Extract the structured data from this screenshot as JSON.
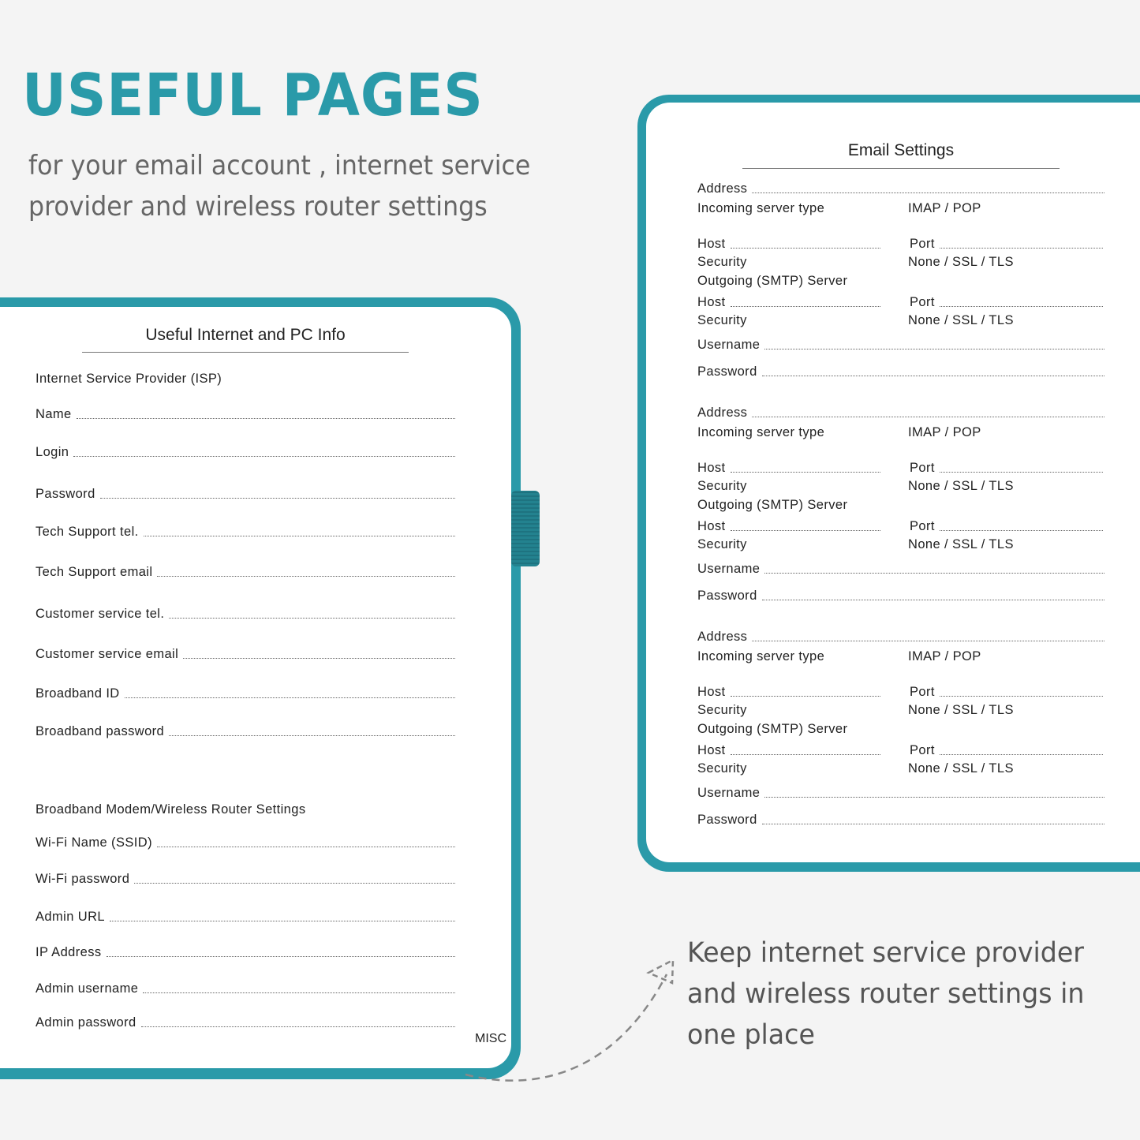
{
  "headline": "USEFUL PAGES",
  "subtitle_lines": [
    "for your email account , internet service",
    "provider and wireless router settings"
  ],
  "caption_lines": [
    "Keep internet service provider",
    "and wireless router settings in",
    "one place"
  ],
  "brand_color": "#2a9aa9",
  "left_page": {
    "title": "Useful Internet and PC Info",
    "isp_heading": "Internet Service Provider  (ISP)",
    "isp_fields": [
      "Name",
      "Login",
      "Password",
      "Tech Support tel.",
      "Tech Support email",
      "Customer service tel.",
      "Customer service email",
      "Broadband ID",
      "Broadband password"
    ],
    "router_heading": "Broadband Modem/Wireless Router Settings",
    "router_fields": [
      "Wi-Fi Name (SSID)",
      "Wi-Fi password",
      "Admin URL",
      "IP Address",
      "Admin username",
      "Admin password"
    ],
    "tab_label": "MISC"
  },
  "right_page": {
    "title": "Email Settings",
    "block": {
      "address": "Address",
      "incoming": "Incoming server type",
      "incoming_options": "IMAP  /  POP",
      "host": "Host",
      "port": "Port",
      "security": "Security",
      "security_options": "None  /  SSL  /  TLS",
      "outgoing": "Outgoing (SMTP) Server",
      "username": "Username",
      "password": "Password"
    },
    "block_count": 3
  }
}
